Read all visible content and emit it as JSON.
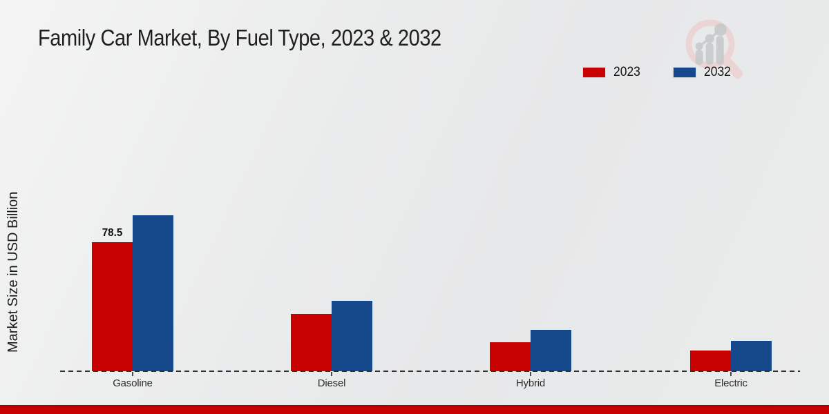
{
  "page": {
    "title": "Family Car Market, By Fuel Type, 2023 & 2032"
  },
  "brand": {
    "accent_red": "#c80202",
    "accent_blue": "#15498c",
    "footer_bar_color": "#c80202",
    "watermark_icon": "magnifier-bar-chart-logo"
  },
  "chart_data": {
    "type": "bar",
    "title": "Family Car Market, By Fuel Type, 2023 & 2032",
    "categories": [
      "Gasoline",
      "Diesel",
      "Hybrid",
      "Electric"
    ],
    "series": [
      {
        "name": "2023",
        "color": "#c80202",
        "values": [
          78.5,
          35,
          17.5,
          12.5
        ],
        "data_labels": [
          "78.5",
          "",
          "",
          ""
        ]
      },
      {
        "name": "2032",
        "color": "#15498c",
        "values": [
          95,
          43,
          25,
          18.5
        ],
        "data_labels": [
          "",
          "",
          "",
          ""
        ]
      }
    ],
    "xlabel": "",
    "ylabel": "Market Size in USD Billion",
    "ylim": [
      0,
      100
    ],
    "grid": false,
    "y_axis_ticks_visible": false,
    "baseline_style": "dashed",
    "legend_position": "top-right"
  }
}
